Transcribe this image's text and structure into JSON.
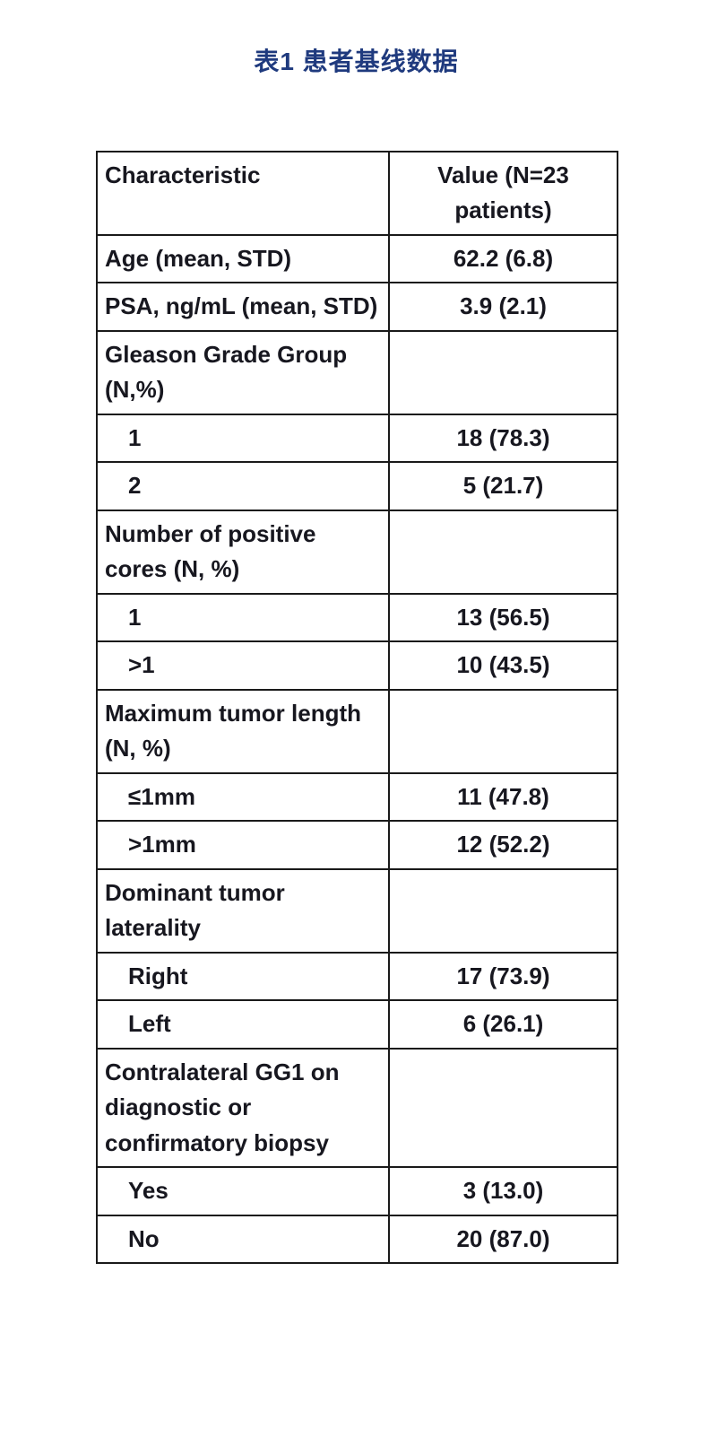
{
  "page": {
    "title": "表1 患者基线数据",
    "title_color": "#1f3a7e",
    "text_color": "#17171f",
    "border_color": "#1a1a1a",
    "background_color": "#ffffff"
  },
  "table": {
    "columns": [
      "Characteristic",
      "Value (N=23 patients)"
    ],
    "rows": [
      {
        "label": "Age (mean, STD)",
        "value": "62.2 (6.8)",
        "indent": false
      },
      {
        "label": "PSA, ng/mL (mean, STD)",
        "value": "3.9 (2.1)",
        "indent": false
      },
      {
        "label": "Gleason Grade Group (N,%)",
        "value": "",
        "indent": false
      },
      {
        "label": "1",
        "value": "18 (78.3)",
        "indent": true
      },
      {
        "label": "2",
        "value": "5 (21.7)",
        "indent": true
      },
      {
        "label": "Number of positive cores (N, %)",
        "value": "",
        "indent": false
      },
      {
        "label": "1",
        "value": "13 (56.5)",
        "indent": true
      },
      {
        "label": ">1",
        "value": "10 (43.5)",
        "indent": true
      },
      {
        "label": "Maximum tumor length (N, %)",
        "value": "",
        "indent": false
      },
      {
        "label": "≤1mm",
        "value": "11 (47.8)",
        "indent": true
      },
      {
        "label": ">1mm",
        "value": "12 (52.2)",
        "indent": true
      },
      {
        "label": "Dominant tumor laterality",
        "value": "",
        "indent": false
      },
      {
        "label": "Right",
        "value": "17 (73.9)",
        "indent": true
      },
      {
        "label": "Left",
        "value": "6 (26.1)",
        "indent": true
      },
      {
        "label": "Contralateral GG1 on diagnostic or confirmatory biopsy",
        "value": "",
        "indent": false
      },
      {
        "label": "Yes",
        "value": "3 (13.0)",
        "indent": true
      },
      {
        "label": "No",
        "value": "20 (87.0)",
        "indent": true
      }
    ]
  }
}
